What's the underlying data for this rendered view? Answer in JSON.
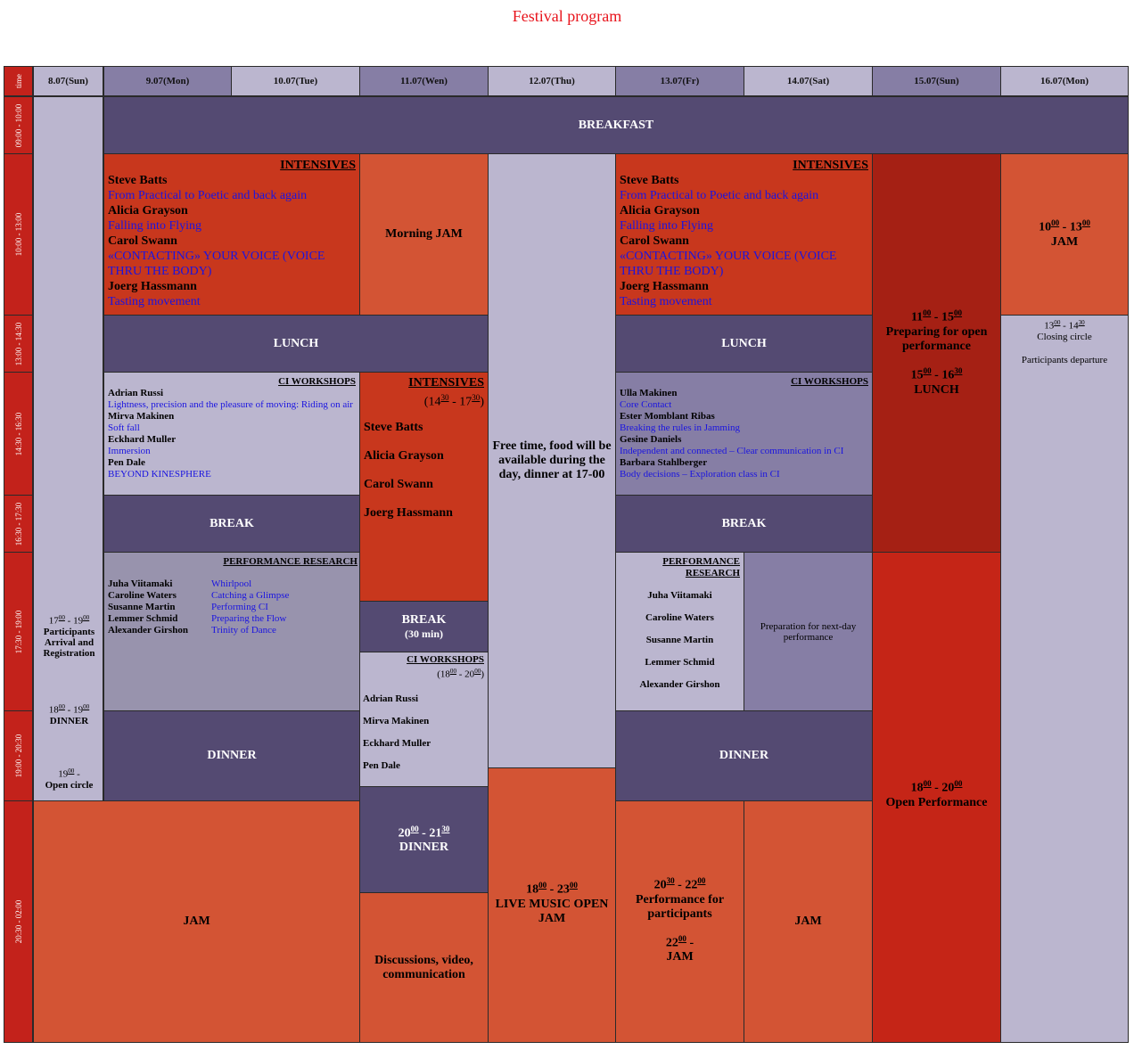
{
  "title": "Festival program",
  "header": {
    "time": "time",
    "days": [
      "8.07(Sun)",
      "9.07(Mon)",
      "10.07(Tue)",
      "11.07(Wen)",
      "12.07(Thu)",
      "13.07(Fr)",
      "14.07(Sat)",
      "15.07(Sun)",
      "16.07(Mon)"
    ]
  },
  "times": [
    "09:00 - 10:00",
    "10:00 - 13:00",
    "13:00 - 14:30",
    "14:30 - 16:30",
    "16:30 - 17:30",
    "17:30 - 19:00",
    "19:00 - 20:30",
    "20:30 - 02:00"
  ],
  "common": {
    "breakfast": "BREAKFAST",
    "lunch": "LUNCH",
    "break": "BREAK",
    "dinner": "DINNER",
    "jam": "JAM",
    "intensives": "INTENSIVES",
    "ci_workshops": "CI WORKSHOPS",
    "performance_research": "PERFORMANCE RESEARCH"
  },
  "intensives": [
    {
      "teacher": "Steve Batts",
      "course": "From Practical to Poetic and back again"
    },
    {
      "teacher": "Alicia Grayson",
      "course": "Falling into Flying"
    },
    {
      "teacher": "Carol Swann",
      "course": "«CONTACTING» YOUR VOICE (VOICE THRU THE BODY)"
    },
    {
      "teacher": "Joerg Hassmann",
      "course": "Tasting movement"
    }
  ],
  "ci_mon": [
    {
      "teacher": "Adrian Russi",
      "course": "Lightness, precision and the pleasure of moving: Riding on air"
    },
    {
      "teacher": "Mirva Makinen",
      "course": "Soft fall"
    },
    {
      "teacher": "Eckhard Muller",
      "course": "Immersion"
    },
    {
      "teacher": "Pen Dale",
      "course": "BEYOND KINESPHERE"
    }
  ],
  "ci_fri": [
    {
      "teacher": "Ulla Makinen",
      "course": "Core Contact"
    },
    {
      "teacher": "Ester Momblant Ribas",
      "course": "Breaking the rules in Jamming"
    },
    {
      "teacher": "Gesine Daniels",
      "course": "Independent and connected – Clear communication in CI"
    },
    {
      "teacher": "Barbara Stahlberger",
      "course": "Body decisions – Exploration class in CI"
    }
  ],
  "perf_mon": [
    {
      "teacher": "Juha Viitamaki",
      "course": "Whirlpool"
    },
    {
      "teacher": "Caroline Waters",
      "course": "Catching a Glimpse"
    },
    {
      "teacher": "Susanne Martin",
      "course": "Performing CI"
    },
    {
      "teacher": "Lemmer Schmid",
      "course": "Preparing the Flow"
    },
    {
      "teacher": "Alexander Girshon",
      "course": "Trinity of Dance"
    }
  ],
  "perf_fri_names": [
    "Juha Viitamaki",
    "Caroline Waters",
    "Susanne Martin",
    "Lemmer Schmid",
    "Alexander Girshon"
  ],
  "wed": {
    "morning_jam": "Morning JAM",
    "intensives_time": "(14:30 - 17:30)",
    "teachers": [
      "Steve Batts",
      "Alicia Grayson",
      "Carol Swann",
      "Joerg Hassmann"
    ],
    "break_label": "BREAK",
    "break_sub": "(30 min)",
    "ci_time": "(18:00 - 20:00)",
    "ci_teachers": [
      "Adrian Russi",
      "Mirva Makinen",
      "Eckhard Muller",
      "Pen Dale"
    ],
    "dinner_time": "20:00 - 21:30",
    "dinner": "DINNER",
    "discussions": "Discussions, video, communication"
  },
  "sun1": {
    "arrival_time": "17:00 - 19:00",
    "arrival": "Participants Arrival and Registration",
    "dinner_time": "18:00 - 19:00",
    "dinner": "DINNER",
    "circle_time": "19:00 -",
    "circle": "Open circle"
  },
  "thu": {
    "free_time": "Free time, food will be available during the day, dinner at 17-00",
    "live_time": "18:00 - 23:00",
    "live": "LIVE MUSIC OPEN JAM"
  },
  "fri": {
    "perf_time": "20:30 - 22:00",
    "perf": "Performance for participants",
    "jam_time": "22:00 -",
    "jam": "JAM"
  },
  "sat": {
    "prep": "Preparation for next-day performance"
  },
  "sun2": {
    "prep_time": "11:00 - 15:00",
    "prep": "Preparing for open performance",
    "lunch_time": "15:00 - 16:30",
    "lunch": "LUNCH",
    "open_time": "18:00 - 20:00",
    "open": "Open Performance"
  },
  "mon2": {
    "jam_time": "10:00 - 13:00",
    "jam": "JAM",
    "circle_time": "13:00 - 14:30",
    "circle": "Closing circle",
    "departure": "Participants departure"
  }
}
